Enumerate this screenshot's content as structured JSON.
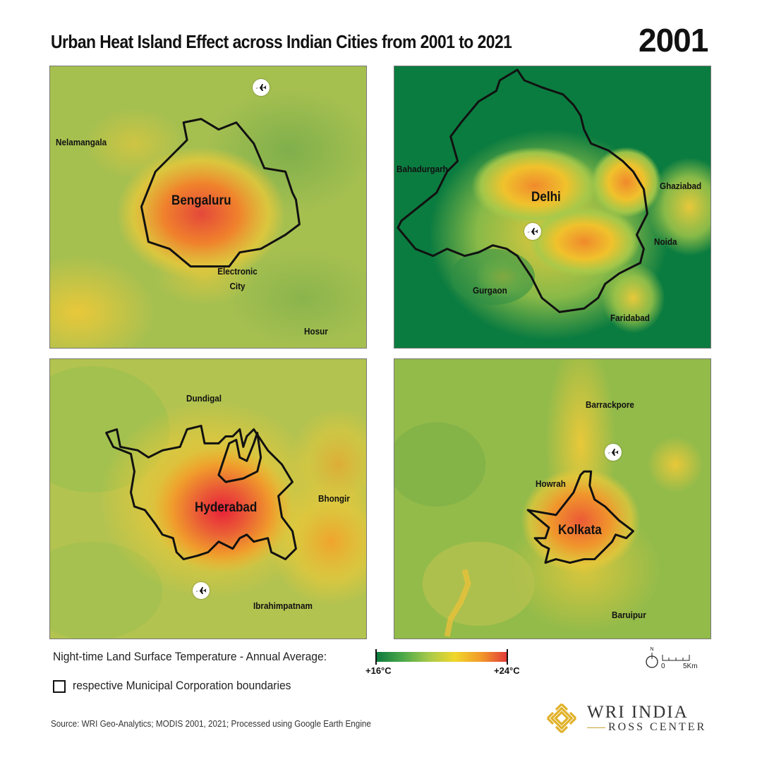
{
  "title": "Urban Heat Island Effect across Indian Cities from 2001 to 2021",
  "year": "2001",
  "panels": {
    "bengaluru": {
      "city": "Bengaluru",
      "places": [
        "Nelamangala",
        "Electronic City",
        "Hosur"
      ]
    },
    "delhi": {
      "city": "Delhi",
      "places": [
        "Bahadurgarh",
        "Ghaziabad",
        "Noida",
        "Gurgaon",
        "Faridabad"
      ]
    },
    "hyderabad": {
      "city": "Hyderabad",
      "places": [
        "Dundigal",
        "Bhongir",
        "Ibrahimpatnam"
      ]
    },
    "kolkata": {
      "city": "Kolkata",
      "places": [
        "Barrackpore",
        "Howrah",
        "Baruipur"
      ]
    }
  },
  "legend": {
    "lst_label": "Night-time Land Surface Temperature - Annual Average:",
    "min_label": "+16°C",
    "max_label": "+24°C",
    "boundary_label": "respective Municipal Corporation boundaries",
    "ramp_colors": [
      "#0b7a3c",
      "#4aa84a",
      "#a6c94a",
      "#f0d72a",
      "#f29a2a",
      "#e23a3a"
    ]
  },
  "scale": {
    "north": "N",
    "zero": "0",
    "distance": "5Km"
  },
  "source": "Source: WRI Geo-Analytics; MODIS 2001, 2021; Processed using Google Earth Engine",
  "logo": {
    "name": "WRI INDIA",
    "sub": "ROSS CENTER"
  },
  "icons": {
    "airport": "airplane-icon"
  }
}
